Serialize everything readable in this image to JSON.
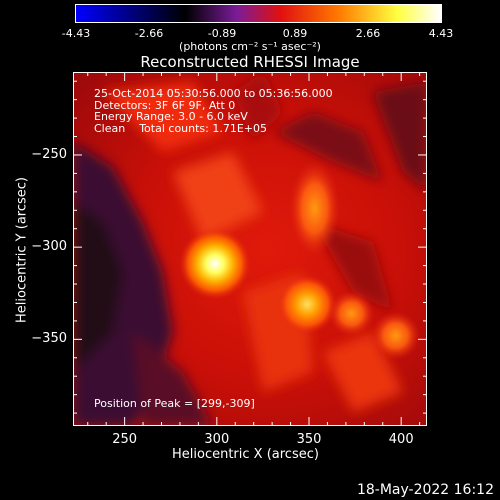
{
  "colorbar": {
    "ticks": [
      "-4.43",
      "-2.66",
      "-0.89",
      "0.89",
      "2.66",
      "4.43"
    ],
    "unit": "(photons cm⁻² s⁻¹ asec⁻²)",
    "colormap": [
      "#0000ff",
      "#000000",
      "#8a1ea0",
      "#e01010",
      "#ff8a00",
      "#ffff40",
      "#ffffff"
    ]
  },
  "chart_data": {
    "type": "heatmap",
    "title": "Reconstructed RHESSI Image",
    "xlabel": "Heliocentric X (arcsec)",
    "ylabel": "Heliocentric Y (arcsec)",
    "xlim": [
      222,
      414
    ],
    "ylim": [
      -397,
      -205
    ],
    "xticks": [
      "250",
      "300",
      "350",
      "400"
    ],
    "yticks": [
      "-250",
      "-300",
      "-350"
    ],
    "info_lines": [
      "25-Oct-2014 05:30:56.000 to 05:36:56.000",
      "Detectors: 3F 6F 9F, Att 0",
      "Energy Range: 3.0 - 6.0 keV",
      "Clean    Total counts: 1.71E+05"
    ],
    "peak_text": "Position of Peak = [299,-309]",
    "peak_position": [
      299,
      -309
    ],
    "sources": [
      {
        "x": 299,
        "y": -309,
        "intensity": 4.43
      },
      {
        "x": 349,
        "y": -331,
        "intensity": 3.2
      },
      {
        "x": 353,
        "y": -279,
        "intensity": 2.3
      },
      {
        "x": 397,
        "y": -348,
        "intensity": 2.1
      },
      {
        "x": 373,
        "y": -336,
        "intensity": 1.8
      }
    ]
  },
  "footer": {
    "datestamp": "18-May-2022 16:12"
  }
}
